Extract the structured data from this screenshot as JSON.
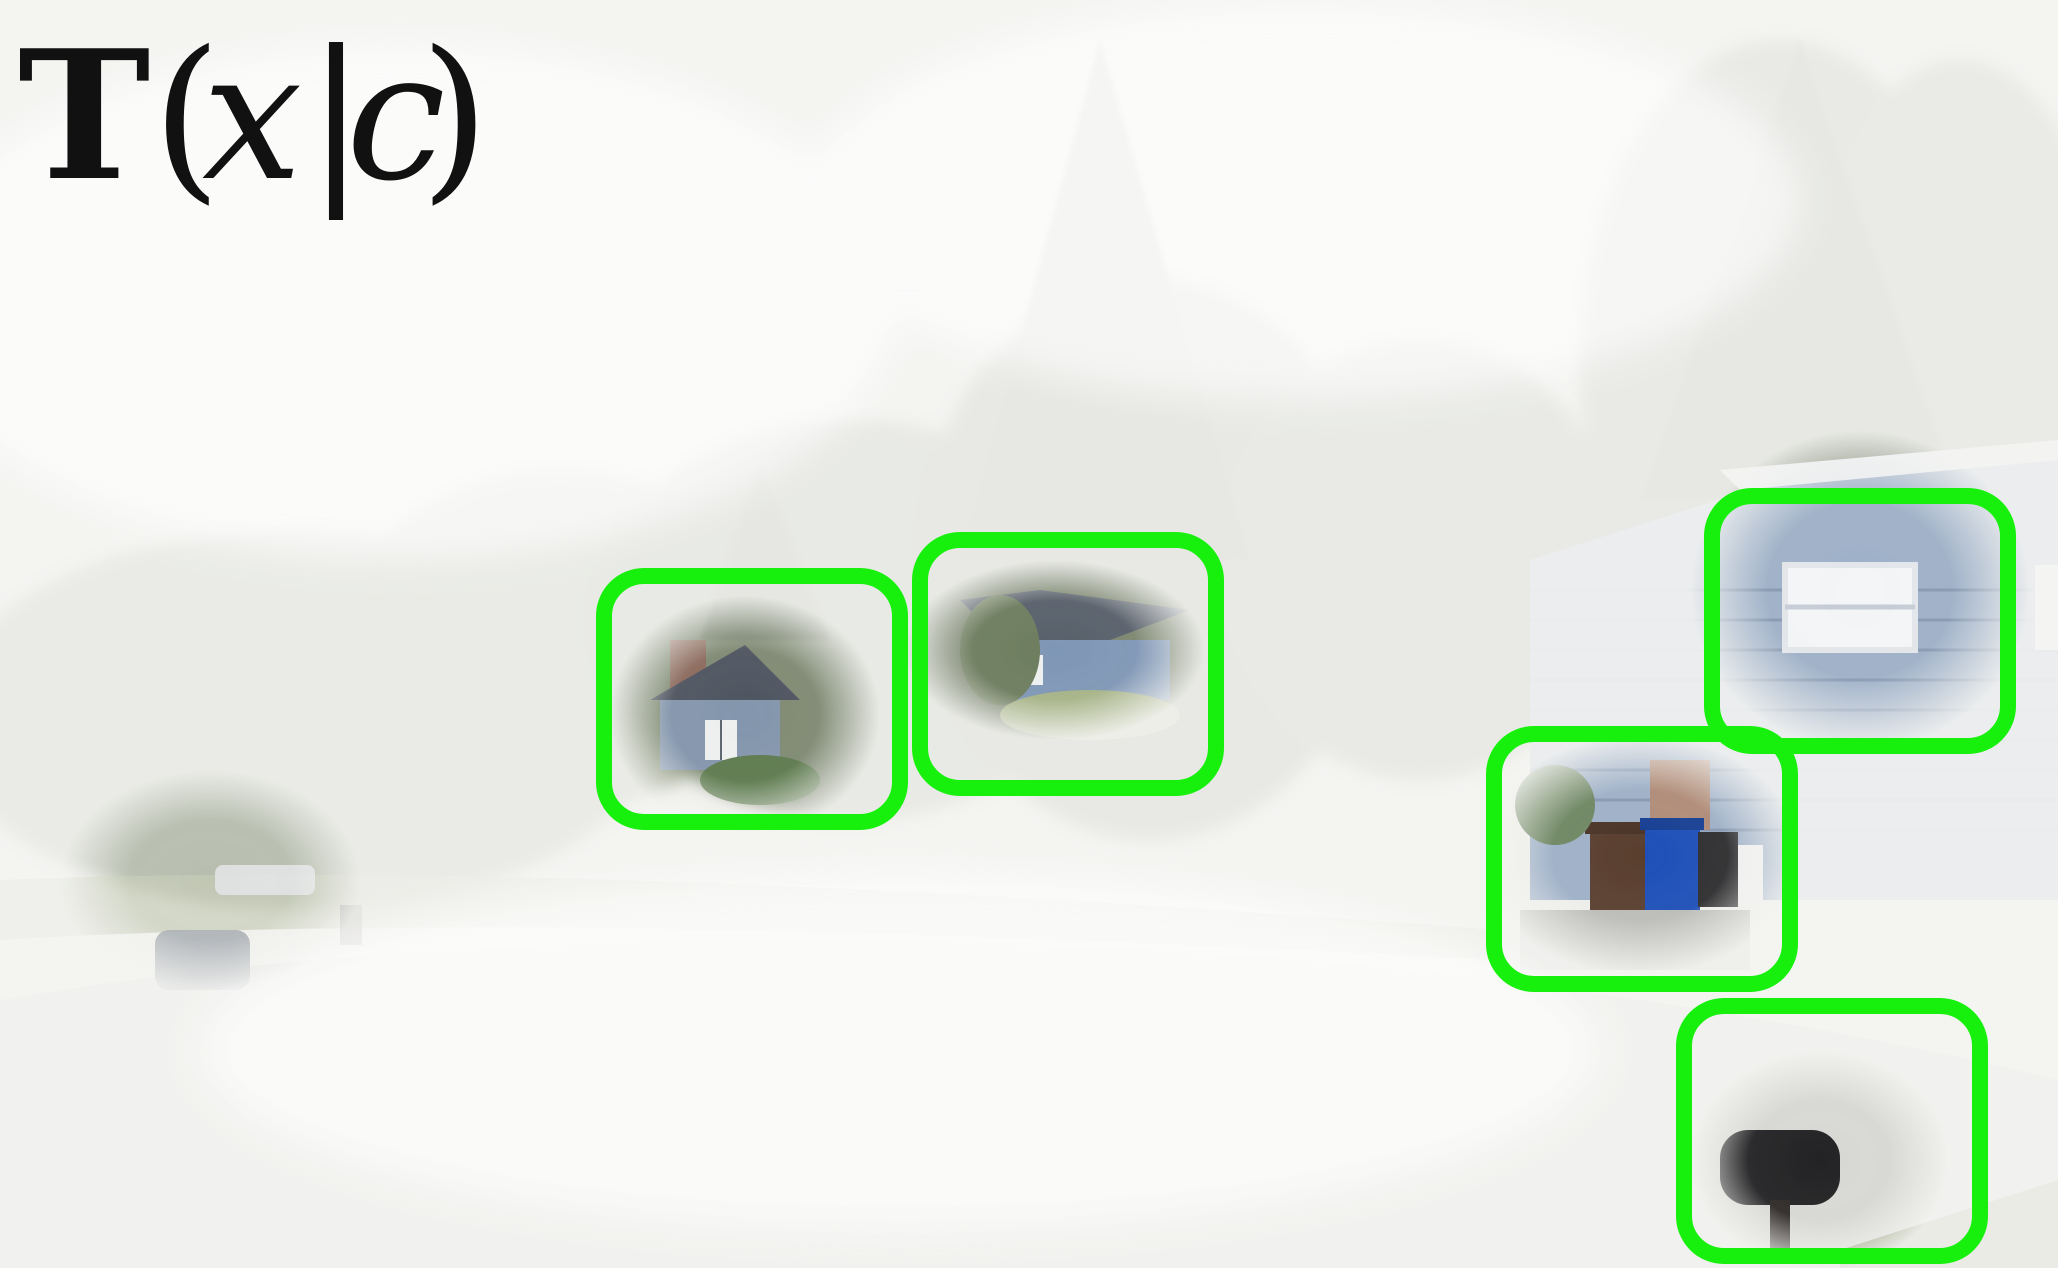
{
  "figure": {
    "formula": {
      "bold_symbol": "T",
      "open_paren": "(",
      "variable": "x",
      "bar": "|",
      "condition": "c",
      "close_paren": ")"
    },
    "highlight_color": "#16f00c",
    "fog_color": "#f4f4f2",
    "scene": {
      "sky_color": "#eeeeea",
      "tree_color": "#9aa08c",
      "siding_color": "#9fb1c8",
      "road_color": "#d8d8d4"
    },
    "highlight_boxes": [
      {
        "name": "highlight-box-left-house",
        "content": "house-with-chimney"
      },
      {
        "name": "highlight-box-center-house",
        "content": "blue-house-roof"
      },
      {
        "name": "highlight-box-window",
        "content": "house-window"
      },
      {
        "name": "highlight-box-trash-bins",
        "content": "trash-bins"
      },
      {
        "name": "highlight-box-mailbox",
        "content": "mailbox"
      }
    ]
  }
}
